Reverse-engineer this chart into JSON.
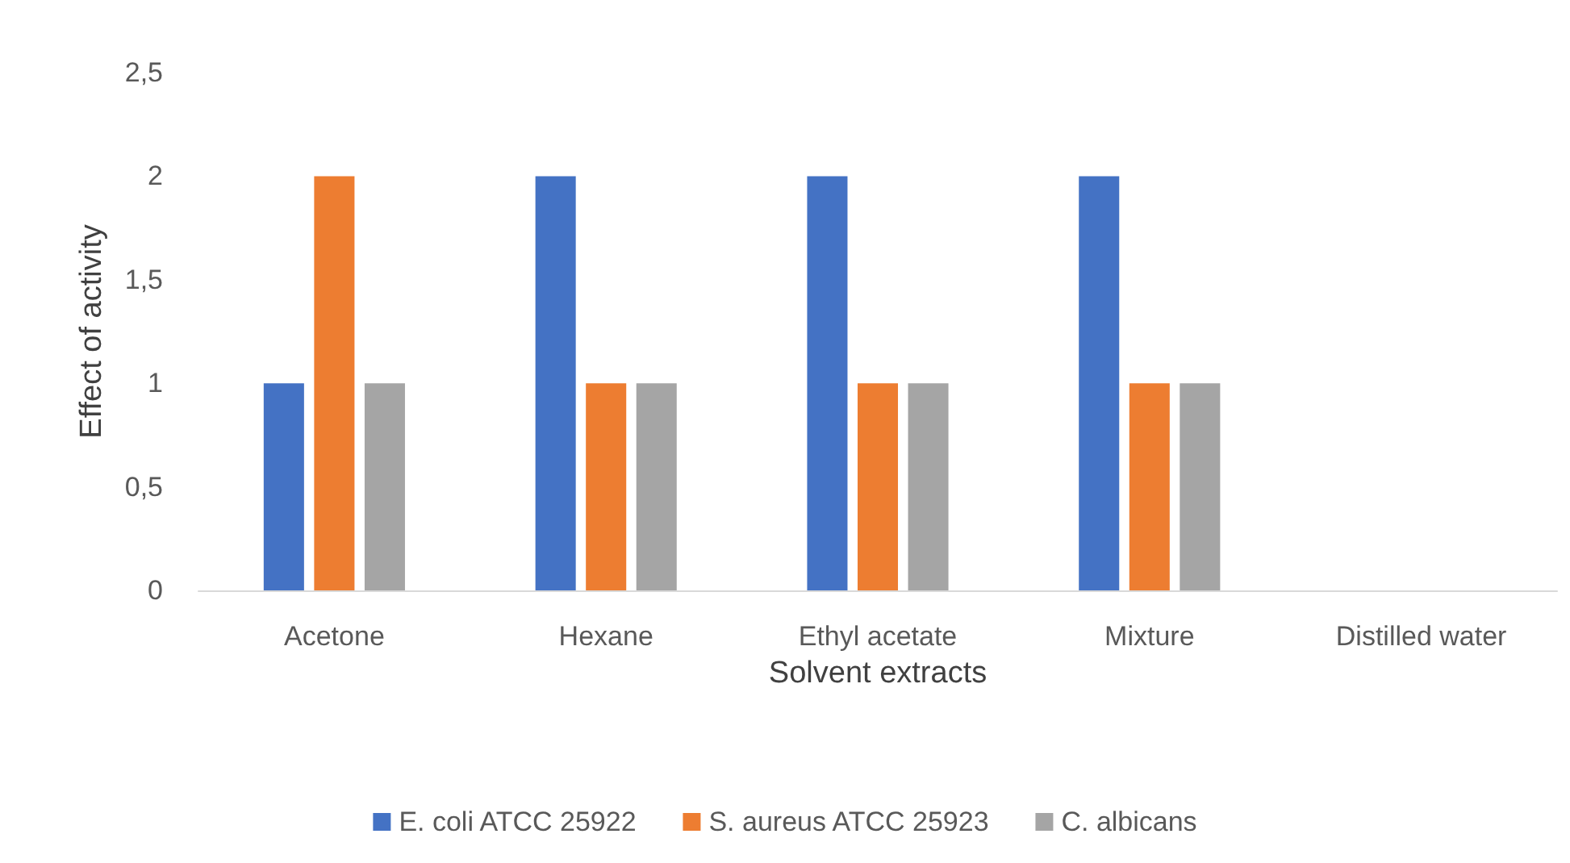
{
  "chart_data": {
    "type": "bar",
    "xlabel": "Solvent extracts",
    "ylabel": "Effect of activity",
    "categories": [
      "Acetone",
      "Hexane",
      "Ethyl acetate",
      "Mixture",
      "Distilled water"
    ],
    "series": [
      {
        "name": "E. coli ATCC 25922",
        "color": "#4472c4",
        "values": [
          1,
          2,
          2,
          2,
          0
        ]
      },
      {
        "name": "S. aureus ATCC 25923",
        "color": "#ed7d31",
        "values": [
          2,
          1,
          1,
          1,
          0
        ]
      },
      {
        "name": "C. albicans",
        "color": "#a5a5a5",
        "values": [
          1,
          1,
          1,
          1,
          0
        ]
      }
    ],
    "ylim": [
      0,
      2.5
    ],
    "yticks": [
      {
        "value": 0,
        "label": "0"
      },
      {
        "value": 0.5,
        "label": "0,5"
      },
      {
        "value": 1,
        "label": "1"
      },
      {
        "value": 1.5,
        "label": "1,5"
      },
      {
        "value": 2,
        "label": "2"
      },
      {
        "value": 2.5,
        "label": "2,5"
      }
    ],
    "grid": false,
    "legend": "bottom"
  }
}
